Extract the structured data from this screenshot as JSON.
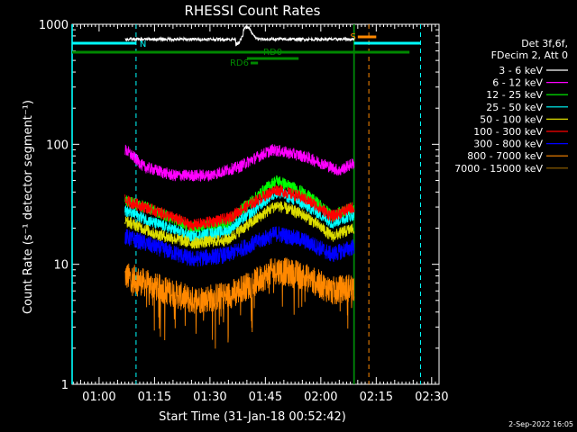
{
  "chart_data": {
    "type": "line",
    "title": "RHESSI Count Rates",
    "xlabel": "Start Time (31-Jan-18 00:52:42)",
    "ylabel": "Count Rate (s⁻¹ detector segment⁻¹)",
    "y_scale": "log",
    "ylim": [
      1,
      1000
    ],
    "xlim": [
      "00:52:42",
      "02:32:00"
    ],
    "x_ticks": [
      "01:00",
      "01:15",
      "01:30",
      "01:45",
      "02:00",
      "02:15",
      "02:30"
    ],
    "y_ticks": [
      "1",
      "10",
      "100",
      "1000"
    ],
    "grid": false,
    "legend_position": "right",
    "legend_header": [
      "Det 3f,6f,",
      "FDecim 2, Att 0"
    ],
    "series": [
      {
        "name": "3 - 6 keV",
        "color": "#ffffff",
        "x": [
          "01:07",
          "01:20",
          "01:32",
          "01:40",
          "01:46",
          "01:55",
          "02:05",
          "02:09"
        ],
        "values": [
          null,
          null,
          null,
          null,
          null,
          null,
          null,
          null
        ]
      },
      {
        "name": "6 - 12 keV",
        "color": "#ff00ff",
        "x": [
          "01:07",
          "01:12",
          "01:20",
          "01:30",
          "01:38",
          "01:47",
          "01:55",
          "02:05",
          "02:09"
        ],
        "values": [
          90,
          65,
          55,
          55,
          65,
          90,
          80,
          60,
          70
        ]
      },
      {
        "name": "12 - 25 keV",
        "color": "#00ff00",
        "x": [
          "01:07",
          "01:15",
          "01:25",
          "01:35",
          "01:42",
          "01:48",
          "01:55",
          "02:03",
          "02:09"
        ],
        "values": [
          34,
          28,
          20,
          22,
          35,
          50,
          40,
          25,
          30
        ]
      },
      {
        "name": "25 - 50 keV",
        "color": "#00ffff",
        "x": [
          "01:07",
          "01:15",
          "01:25",
          "01:35",
          "01:42",
          "01:48",
          "01:55",
          "02:03",
          "02:09"
        ],
        "values": [
          28,
          22,
          17,
          19,
          28,
          40,
          32,
          22,
          26
        ]
      },
      {
        "name": "50 - 100 keV",
        "color": "#dddd00",
        "x": [
          "01:07",
          "01:15",
          "01:25",
          "01:35",
          "01:42",
          "01:48",
          "01:55",
          "02:03",
          "02:09"
        ],
        "values": [
          23,
          18,
          15,
          16,
          23,
          31,
          26,
          17,
          20
        ]
      },
      {
        "name": "100 - 300 keV",
        "color": "#ff0000",
        "x": [
          "01:07",
          "01:15",
          "01:25",
          "01:35",
          "01:42",
          "01:48",
          "01:55",
          "02:03",
          "02:09"
        ],
        "values": [
          34,
          28,
          21,
          24,
          33,
          42,
          36,
          25,
          30
        ]
      },
      {
        "name": "300 - 800 keV",
        "color": "#0000ff",
        "x": [
          "01:07",
          "01:15",
          "01:25",
          "01:35",
          "01:42",
          "01:48",
          "01:55",
          "02:03",
          "02:09"
        ],
        "values": [
          17,
          14,
          11,
          12,
          15,
          18,
          16,
          12,
          14
        ]
      },
      {
        "name": "800 - 7000 keV",
        "color": "#ff8800",
        "x": [
          "01:07",
          "01:15",
          "01:25",
          "01:35",
          "01:42",
          "01:48",
          "01:55",
          "02:03",
          "02:09"
        ],
        "values": [
          8,
          6.5,
          5,
          5.5,
          7,
          9,
          8,
          6,
          6.5
        ]
      },
      {
        "name": "7000 - 15000 keV",
        "color": "#996600",
        "x": [],
        "values": []
      }
    ],
    "flags": [
      {
        "label": "N",
        "color": "#00ffff",
        "start": "00:52:42",
        "end": "01:10",
        "level": 0
      },
      {
        "label": "",
        "color": "#00ffff",
        "start": "02:09",
        "end": "02:27",
        "level": 0
      },
      {
        "label": "",
        "color": "#008800",
        "start": "00:52:42",
        "end": "02:09",
        "level": 1
      },
      {
        "label": "",
        "color": "#008800",
        "start": "02:09",
        "end": "02:24",
        "level": 1
      },
      {
        "label": "RD0",
        "color": "#008800",
        "start": "01:40",
        "end": "01:54",
        "level": 2
      },
      {
        "label": "RD6",
        "color": "#008800",
        "start": "01:41",
        "end": "01:43",
        "level": 3
      },
      {
        "label": "S",
        "color": "#ff8800",
        "start": "02:10",
        "end": "02:15",
        "level": -1
      }
    ],
    "vertical_lines": [
      {
        "time": "00:52:42",
        "color": "#00ffff",
        "style": "solid"
      },
      {
        "time": "01:10",
        "color": "#00ffff",
        "style": "dashed"
      },
      {
        "time": "02:09",
        "color": "#00ffff",
        "style": "solid"
      },
      {
        "time": "02:09",
        "color": "#008800",
        "style": "solid"
      },
      {
        "time": "02:13",
        "color": "#ff8800",
        "style": "dashed"
      },
      {
        "time": "02:27",
        "color": "#00ffff",
        "style": "dashed"
      }
    ],
    "annotation": "2-Sep-2022 16:05"
  }
}
